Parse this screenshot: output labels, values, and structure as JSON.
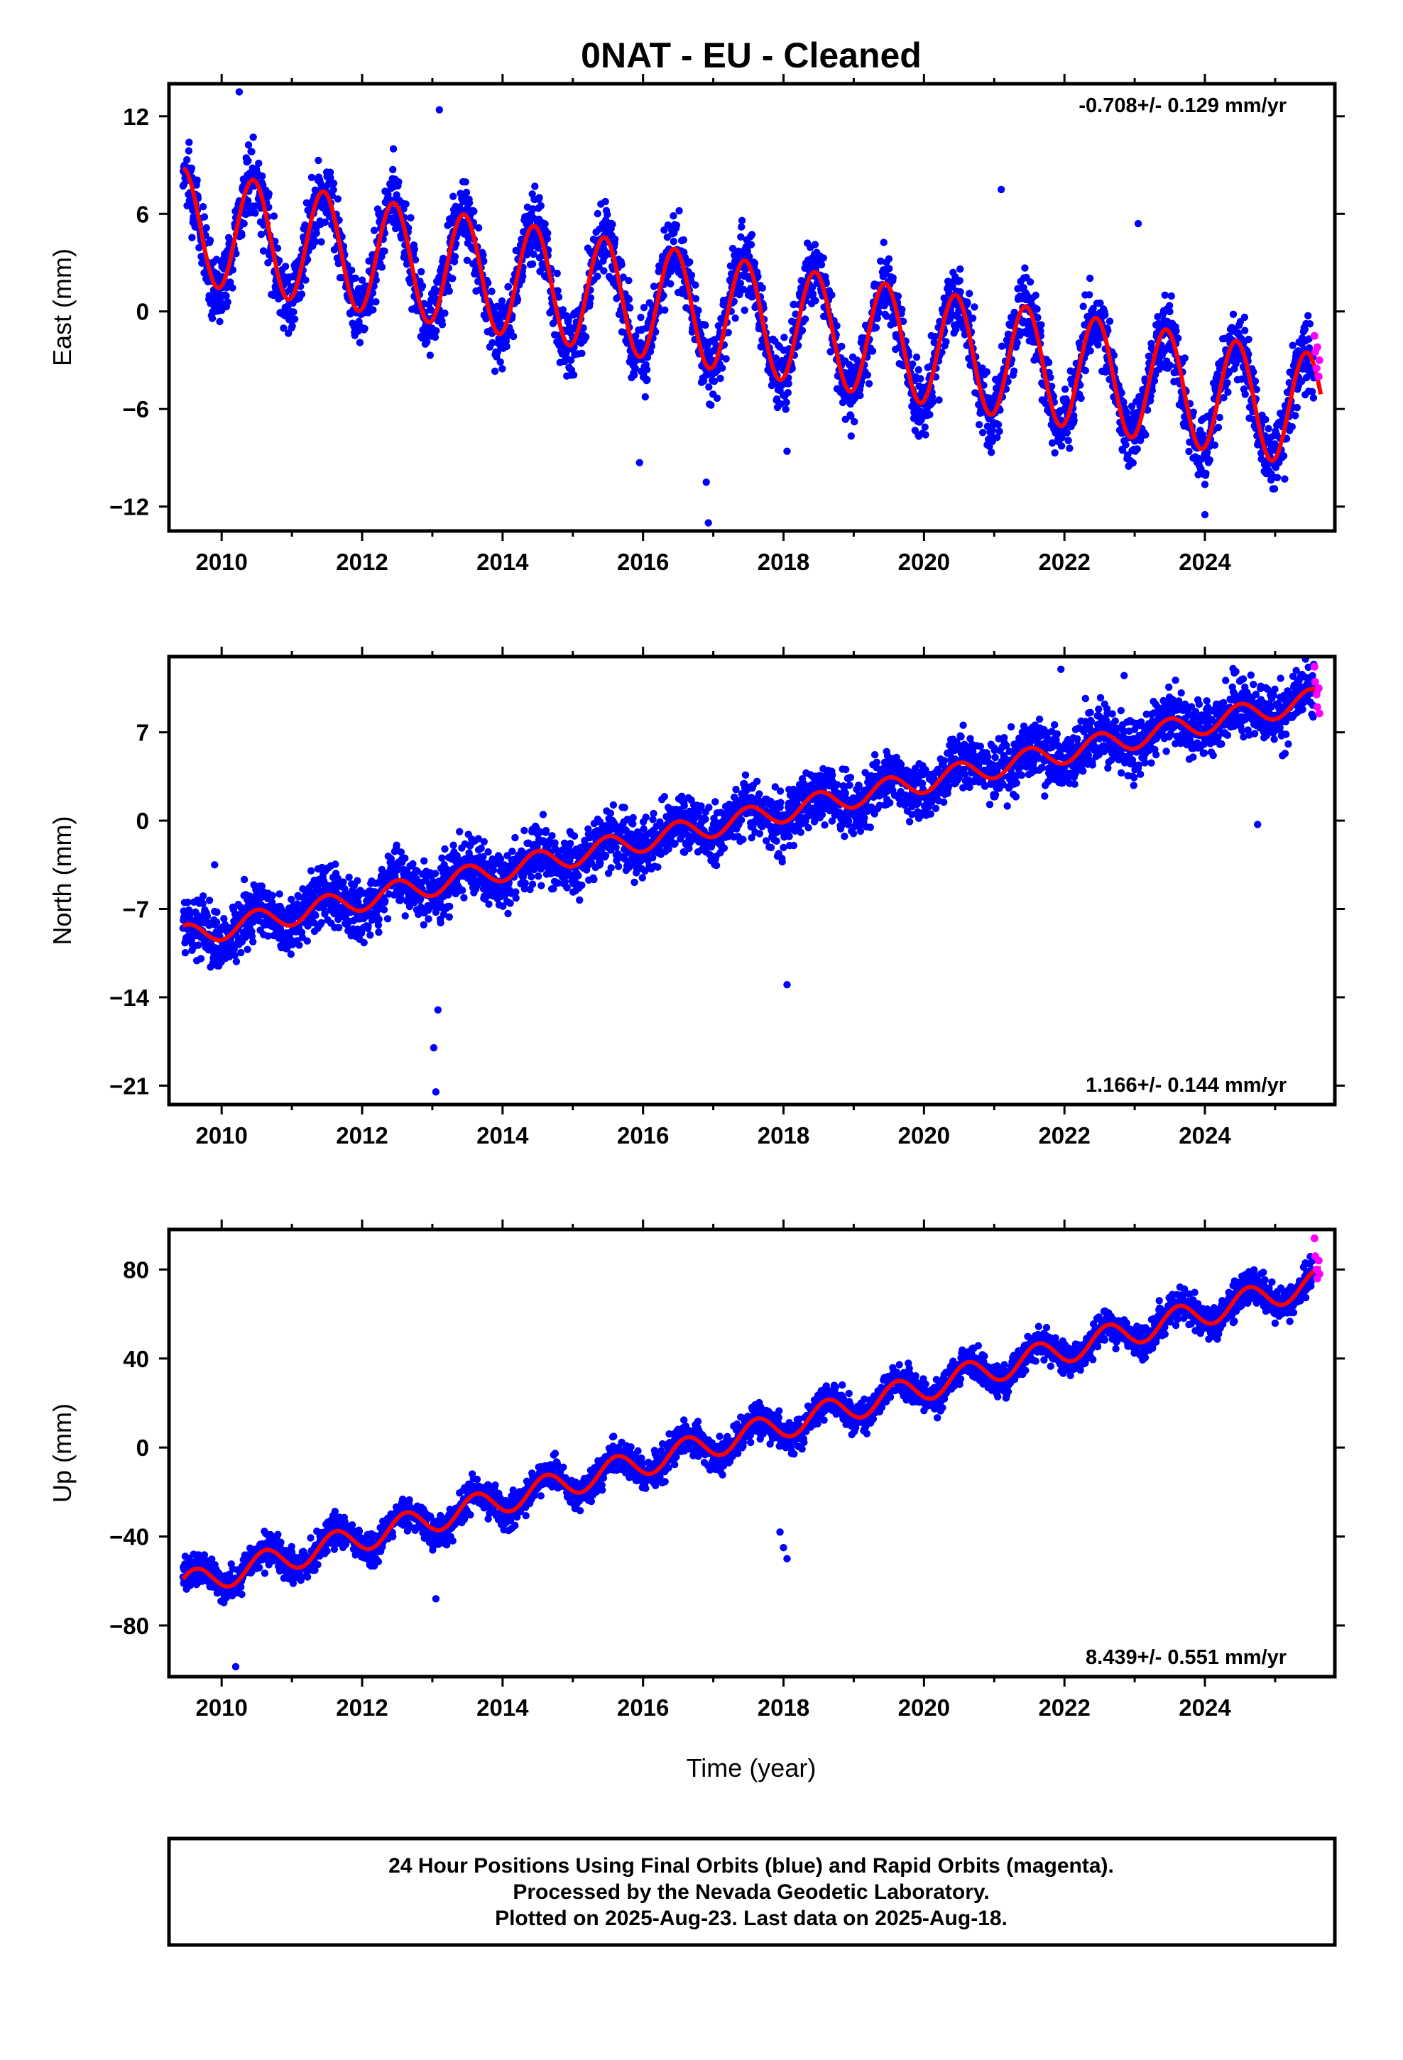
{
  "title": "0NAT  - EU - Cleaned",
  "colors": {
    "final_orbits": "#0000ff",
    "rapid_orbits": "#ff00ff",
    "model_fit": "#ff0000",
    "frame": "#000000"
  },
  "chart_data": [
    {
      "type": "scatter",
      "component": "East",
      "ylabel": "East (mm)",
      "xlabel": "",
      "xlim": [
        2009.25,
        2025.85
      ],
      "ylim": [
        -13.5,
        14
      ],
      "x_ticks": [
        2010,
        2012,
        2014,
        2016,
        2018,
        2020,
        2022,
        2024
      ],
      "y_ticks": [
        12,
        6,
        0,
        -6,
        -12
      ],
      "y_tick_labels": [
        "12",
        "6",
        "0",
        "−6",
        "−12"
      ],
      "rate_label": "-0.708+/- 0.129 mm/yr",
      "rate_position": "top-right",
      "trend_model": {
        "start_year": 2009.45,
        "end_year": 2025.65,
        "value_at_start": 5.3,
        "rate": -0.708,
        "annual_amplitude": 3.5,
        "annual_peak_year_fraction": 0.45
      },
      "series": [
        {
          "name": "Final Orbits (blue)",
          "kind": "daily positions",
          "x_range": [
            2009.45,
            2025.55
          ],
          "scatter_mm": 1.5
        },
        {
          "name": "Rapid Orbits (magenta)",
          "kind": "daily positions",
          "x_range": [
            2025.55,
            2025.63
          ],
          "points": [
            [
              2025.56,
              -1.5
            ],
            [
              2025.57,
              -2.5
            ],
            [
              2025.59,
              -3.5
            ],
            [
              2025.6,
              -2.2
            ],
            [
              2025.62,
              -4.0
            ],
            [
              2025.63,
              -3.0
            ]
          ]
        }
      ],
      "outliers": [
        {
          "x": 2010.25,
          "y": 13.5
        },
        {
          "x": 2013.1,
          "y": 12.4
        },
        {
          "x": 2016.9,
          "y": -10.5
        },
        {
          "x": 2016.93,
          "y": -13.0
        },
        {
          "x": 2024.0,
          "y": -12.5
        },
        {
          "x": 2021.1,
          "y": 7.5
        },
        {
          "x": 2023.05,
          "y": 5.4
        },
        {
          "x": 2015.95,
          "y": -9.3
        },
        {
          "x": 2018.05,
          "y": -8.6
        }
      ]
    },
    {
      "type": "scatter",
      "component": "North",
      "ylabel": "North (mm)",
      "xlabel": "",
      "xlim": [
        2009.25,
        2025.85
      ],
      "ylim": [
        -22.5,
        13
      ],
      "x_ticks": [
        2010,
        2012,
        2014,
        2016,
        2018,
        2020,
        2022,
        2024
      ],
      "y_ticks": [
        7,
        0,
        -7,
        -14,
        -21
      ],
      "y_tick_labels": [
        "7",
        "0",
        "−7",
        "−14",
        "−21"
      ],
      "rate_label": "1.166+/- 0.144 mm/yr",
      "rate_position": "bottom-right",
      "trend_model": {
        "start_year": 2009.45,
        "end_year": 2025.65,
        "value_at_start": -9.2,
        "rate": 1.166,
        "annual_amplitude": 0.9,
        "annual_peak_year_fraction": 0.5
      },
      "series": [
        {
          "name": "Final Orbits (blue)",
          "kind": "daily positions",
          "x_range": [
            2009.45,
            2025.55
          ],
          "scatter_mm": 1.6
        },
        {
          "name": "Rapid Orbits (magenta)",
          "kind": "daily positions",
          "x_range": [
            2025.55,
            2025.63
          ],
          "points": [
            [
              2025.56,
              12.2
            ],
            [
              2025.57,
              11.0
            ],
            [
              2025.59,
              10.0
            ],
            [
              2025.6,
              9.0
            ],
            [
              2025.62,
              10.5
            ],
            [
              2025.63,
              8.5
            ]
          ]
        }
      ],
      "outliers": [
        {
          "x": 2013.05,
          "y": -21.5
        },
        {
          "x": 2013.02,
          "y": -18.0
        },
        {
          "x": 2013.08,
          "y": -15.0
        },
        {
          "x": 2018.05,
          "y": -13.0
        },
        {
          "x": 2009.9,
          "y": -3.5
        },
        {
          "x": 2021.95,
          "y": 12.0
        },
        {
          "x": 2022.85,
          "y": 11.5
        },
        {
          "x": 2024.75,
          "y": -0.3
        }
      ]
    },
    {
      "type": "scatter",
      "component": "Up",
      "ylabel": "Up (mm)",
      "xlabel": "Time (year)",
      "xlim": [
        2009.25,
        2025.85
      ],
      "ylim": [
        -103,
        98
      ],
      "x_ticks": [
        2010,
        2012,
        2014,
        2016,
        2018,
        2020,
        2022,
        2024
      ],
      "y_ticks": [
        80,
        40,
        0,
        -40,
        -80
      ],
      "y_tick_labels": [
        "80",
        "40",
        "0",
        "−40",
        "−80"
      ],
      "rate_label": "8.439+/- 0.551 mm/yr",
      "rate_position": "bottom-right",
      "trend_model": {
        "start_year": 2009.45,
        "end_year": 2025.65,
        "value_at_start": -62,
        "rate": 8.439,
        "annual_amplitude": 6.0,
        "annual_peak_year_fraction": 0.62
      },
      "series": [
        {
          "name": "Final Orbits (blue)",
          "kind": "daily positions",
          "x_range": [
            2009.45,
            2025.55
          ],
          "scatter_mm": 5.0
        },
        {
          "name": "Rapid Orbits (magenta)",
          "kind": "daily positions",
          "x_range": [
            2025.55,
            2025.63
          ],
          "points": [
            [
              2025.56,
              94
            ],
            [
              2025.57,
              86
            ],
            [
              2025.59,
              80
            ],
            [
              2025.6,
              76
            ],
            [
              2025.62,
              84
            ],
            [
              2025.63,
              78
            ]
          ]
        }
      ],
      "outliers": [
        {
          "x": 2010.2,
          "y": -98.5
        },
        {
          "x": 2018.0,
          "y": -45.0
        },
        {
          "x": 2018.05,
          "y": -50.0
        },
        {
          "x": 2017.95,
          "y": -38.0
        },
        {
          "x": 2013.05,
          "y": -68.0
        }
      ]
    }
  ],
  "footer": {
    "line1": "24 Hour Positions Using Final Orbits (blue) and Rapid Orbits (magenta).",
    "line2": "Processed by the Nevada Geodetic Laboratory.",
    "line3": "Plotted on 2025-Aug-23. Last data on 2025-Aug-18."
  }
}
